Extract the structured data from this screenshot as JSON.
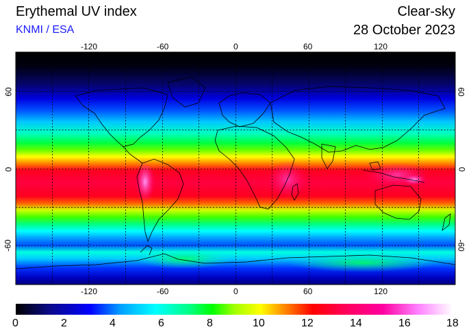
{
  "header": {
    "title": "Erythemal UV index",
    "credit": "KNMI / ESA",
    "mode": "Clear-sky",
    "date": "28 October 2023"
  },
  "map": {
    "projection": "equirectangular",
    "lon_ticks": [
      "-120",
      "-60",
      "0",
      "60",
      "120"
    ],
    "lat_ticks": [
      "60",
      "0",
      "-60"
    ],
    "gridlines": true
  },
  "colorbar": {
    "min": 0,
    "max": 18,
    "labels": [
      "0",
      "2",
      "4",
      "6",
      "8",
      "10",
      "12",
      "14",
      "16",
      "18"
    ],
    "colors": [
      "#000000",
      "#0a0a8c",
      "#0000ff",
      "#00a0ff",
      "#00ffff",
      "#00ff80",
      "#00ff00",
      "#a0ff00",
      "#ffff00",
      "#ff8000",
      "#ff0000",
      "#ff0060",
      "#ff00a0",
      "#ff80ff",
      "#ffffff"
    ]
  }
}
